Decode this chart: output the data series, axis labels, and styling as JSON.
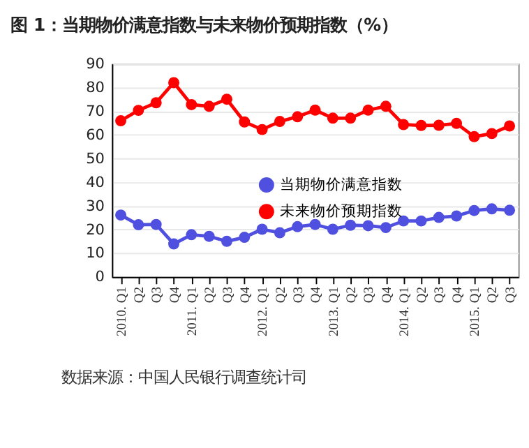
{
  "chart_data": {
    "type": "line",
    "title": "图 1：当期物价满意指数与未来物价预期指数（%）",
    "categories": [
      "2010. Q1",
      "Q2",
      "Q3",
      "Q4",
      "2011. Q1",
      "Q2",
      "Q3",
      "Q4",
      "2012. Q1",
      "Q2",
      "Q3",
      "Q4",
      "2013. Q1",
      "Q2",
      "Q3",
      "Q4",
      "2014. Q1",
      "Q2",
      "Q3",
      "Q4",
      "2015. Q1",
      "Q2",
      "Q3"
    ],
    "series": [
      {
        "name": "当期物价满意指数",
        "color": "#5050e0",
        "values": [
          26.1,
          22,
          22.1,
          13.9,
          17.8,
          17.1,
          15,
          16.7,
          20.1,
          18.6,
          21.2,
          22.1,
          20.1,
          21.8,
          21.6,
          20.8,
          23.6,
          23.6,
          25.1,
          25.7,
          28,
          28.7,
          28.1
        ]
      },
      {
        "name": "未来物价预期指数",
        "color": "#ff0000",
        "values": [
          65.9,
          70.3,
          73.5,
          82,
          72.7,
          72,
          75,
          65.4,
          62.2,
          65.6,
          67.6,
          70.4,
          67,
          67,
          70.4,
          72,
          64.3,
          63.9,
          64,
          64.8,
          59.2,
          60.5,
          63.7
        ]
      }
    ],
    "ylim": [
      0,
      90
    ],
    "yticks": [
      0,
      10,
      20,
      30,
      40,
      50,
      60,
      70,
      80,
      90
    ],
    "grid": "y",
    "legend": "center",
    "marker": "circle",
    "line_style": "solid",
    "annotations": [
      "数据来源：中国人民银行调查统计司"
    ]
  }
}
